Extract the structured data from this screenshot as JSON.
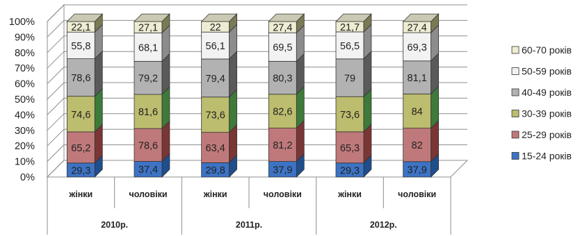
{
  "chart_data": {
    "type": "bar",
    "stacked": "percent",
    "three_d": true,
    "ylim": [
      0,
      100
    ],
    "y_ticks": [
      "0%",
      "10%",
      "20%",
      "30%",
      "40%",
      "50%",
      "60%",
      "70%",
      "80%",
      "90%",
      "100%"
    ],
    "grid": true,
    "legend_position": "right",
    "groups": [
      {
        "label": "2010р.",
        "categories": [
          "жінки",
          "чоловіки"
        ]
      },
      {
        "label": "2011р.",
        "categories": [
          "жінки",
          "чоловіки"
        ]
      },
      {
        "label": "2012р.",
        "categories": [
          "жінки",
          "чоловіки"
        ]
      }
    ],
    "series": [
      {
        "name": "15-24 років",
        "color": "#3d73c4",
        "values": [
          29.3,
          37.4,
          29.8,
          37.9,
          29.3,
          37.9
        ]
      },
      {
        "name": "25-29 років",
        "color": "#c0797a",
        "values": [
          65.2,
          78.6,
          63.4,
          81.2,
          65.3,
          82
        ]
      },
      {
        "name": "30-39 років",
        "color": "#bcbd6e",
        "values": [
          74.6,
          81.6,
          73.6,
          82.6,
          73.6,
          84
        ]
      },
      {
        "name": "40-49 років",
        "color": "#b2b2b2",
        "values": [
          78.6,
          79.2,
          79.4,
          80.3,
          79,
          81.1
        ]
      },
      {
        "name": "50-59 років",
        "color": "#f2f2f2",
        "values": [
          55.8,
          68.1,
          56.1,
          69.5,
          56.5,
          69.3
        ]
      },
      {
        "name": "60-70 років",
        "color": "#eeecd2",
        "values": [
          22.1,
          27.1,
          22,
          27.4,
          21.7,
          27.4
        ]
      }
    ]
  }
}
